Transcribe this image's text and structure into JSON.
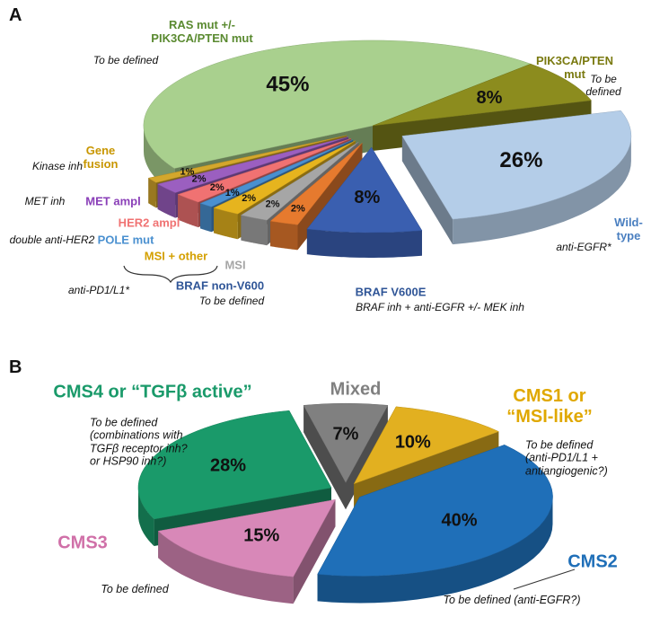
{
  "chart_data": [
    {
      "type": "pie",
      "panel": "A",
      "categories": [
        "RAS mut +/-\nPIK3CA/PTEN mut",
        "PIK3CA/PTEN mut",
        "Wild-type",
        "BRAF V600E",
        "BRAF non-V600",
        "MSI",
        "MSI + other",
        "POLE mut",
        "HER2 ampl",
        "MET ampl",
        "Gene\nfusion"
      ],
      "values": [
        45,
        8,
        26,
        8,
        2,
        2,
        2,
        1,
        2,
        2,
        1
      ],
      "value_labels": [
        "45%",
        "8%",
        "26%",
        "8%",
        "2%",
        "2%",
        "2%",
        "1%",
        "2%",
        "2%",
        "1%"
      ],
      "colors": [
        "#a9d08e",
        "#8c8c1e",
        "#b4cde8",
        "#3a5fb0",
        "#e67a2e",
        "#a6a6a6",
        "#e6b41e",
        "#4a90d0",
        "#f07272",
        "#9b5fc0",
        "#d4a72c"
      ],
      "label_colors": [
        "#5a8a30",
        "#7a7a10",
        "#4a7fc0",
        "#2f5597",
        "#2f5597",
        "#a6a6a6",
        "#d4a000",
        "#4a90d0",
        "#f07272",
        "#8a3fb8",
        "#c89600"
      ],
      "annotations": [
        "To be defined",
        "To be defined",
        "anti-EGFR*",
        "BRAF inh + anti-EGFR +/- MEK inh",
        "To be defined",
        "anti-PD1/L1*",
        "double anti-HER2",
        "MET inh",
        "Kinase inh"
      ]
    },
    {
      "type": "pie",
      "panel": "B",
      "categories": [
        "Mixed",
        "CMS1 or\n“MSI-like”",
        "CMS2",
        "CMS3",
        "CMS4 or “TGFβ active”"
      ],
      "values": [
        7,
        10,
        40,
        15,
        28
      ],
      "value_labels": [
        "7%",
        "10%",
        "40%",
        "15%",
        "28%"
      ],
      "colors": [
        "#808080",
        "#e2b020",
        "#1f6fb8",
        "#d888b8",
        "#1a9a6a"
      ],
      "label_colors": [
        "#808080",
        "#e0a800",
        "#1f6fb8",
        "#d070a8",
        "#1a9a6a"
      ],
      "annotations": [
        "To be defined\n(anti-PD1/L1 +\nantiangiogenic?)",
        "To be defined  (anti-EGFR?)",
        "To be defined",
        "To be defined\n(combinations with\nTGFβ receptor inh?\nor HSP90 inh?)"
      ]
    }
  ]
}
